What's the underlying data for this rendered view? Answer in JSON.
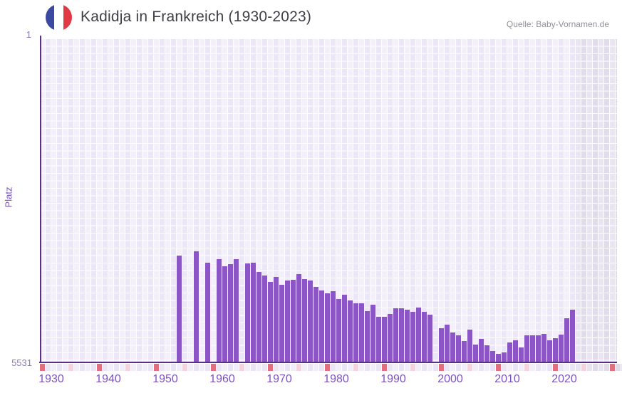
{
  "header": {
    "title": "Kadidja in Frankreich (1930-2023)",
    "flag_icon": "france-flag-icon",
    "source": "Quelle: Baby-Vornamen.de"
  },
  "colors": {
    "bar": "#8C55C6",
    "axis_line": "#5B2E8E",
    "axis_label_text": "#8E7BBC",
    "year_label_text": "#7C52C0",
    "y_title_text": "#7A4FC5",
    "title_text": "#3E3E47",
    "source_text": "#90909A",
    "grid_light": "#F4F0FA",
    "grid_dark": "#ECE7F6",
    "future_grid_light": "#E9E5F1",
    "future_grid_dark": "#E0DCEA",
    "decade_tick": "#E0707E",
    "half_decade_tick": "#F3D3DE",
    "strip_light": "#F2EEF9",
    "strip_dark": "#EAE5F4",
    "future_strip_light": "#E7E3EF",
    "future_strip_dark": "#DFDBE9",
    "flag_blue": "#3B4AA0",
    "flag_white": "#FFFFFF",
    "flag_red": "#E23843"
  },
  "chart_data": {
    "type": "bar",
    "title": "Kadidja in Frankreich (1930-2023)",
    "xlabel": "",
    "ylabel": "Platz",
    "y_axis": {
      "top_label": "1",
      "bottom_label": "5531",
      "min": 1,
      "max": 5531,
      "inverted": true,
      "note": "rank 1 at top, rank 5531 at bottom; taller bar = better rank"
    },
    "x_axis": {
      "tick_labels": [
        "1930",
        "1940",
        "1950",
        "1960",
        "1970",
        "1980",
        "1990",
        "2000",
        "2010",
        "2020"
      ],
      "first_year": 1930,
      "last_data_year": 2023,
      "major_tick_every": 10,
      "minor_tick_every": 5
    },
    "grid": "checkerboard",
    "legend": "off",
    "years_without_ranking": "1930-1953, 1955, 1956, 1958, 1960, 1965, 1999",
    "bars": [
      {
        "year": 1954,
        "rank": 3700
      },
      {
        "year": 1957,
        "rank": 3630
      },
      {
        "year": 1959,
        "rank": 3820
      },
      {
        "year": 1961,
        "rank": 3760
      },
      {
        "year": 1962,
        "rank": 3890
      },
      {
        "year": 1963,
        "rank": 3850
      },
      {
        "year": 1964,
        "rank": 3770
      },
      {
        "year": 1966,
        "rank": 3840
      },
      {
        "year": 1967,
        "rank": 3820
      },
      {
        "year": 1968,
        "rank": 3980
      },
      {
        "year": 1969,
        "rank": 4050
      },
      {
        "year": 1970,
        "rank": 4150
      },
      {
        "year": 1971,
        "rank": 4070
      },
      {
        "year": 1972,
        "rank": 4200
      },
      {
        "year": 1973,
        "rank": 4130
      },
      {
        "year": 1974,
        "rank": 4120
      },
      {
        "year": 1975,
        "rank": 4020
      },
      {
        "year": 1976,
        "rank": 4110
      },
      {
        "year": 1977,
        "rank": 4130
      },
      {
        "year": 1978,
        "rank": 4240
      },
      {
        "year": 1979,
        "rank": 4300
      },
      {
        "year": 1980,
        "rank": 4350
      },
      {
        "year": 1981,
        "rank": 4310
      },
      {
        "year": 1982,
        "rank": 4450
      },
      {
        "year": 1983,
        "rank": 4370
      },
      {
        "year": 1984,
        "rank": 4470
      },
      {
        "year": 1985,
        "rank": 4520
      },
      {
        "year": 1986,
        "rank": 4520
      },
      {
        "year": 1987,
        "rank": 4650
      },
      {
        "year": 1988,
        "rank": 4540
      },
      {
        "year": 1989,
        "rank": 4750
      },
      {
        "year": 1990,
        "rank": 4750
      },
      {
        "year": 1991,
        "rank": 4700
      },
      {
        "year": 1992,
        "rank": 4600
      },
      {
        "year": 1993,
        "rank": 4610
      },
      {
        "year": 1994,
        "rank": 4630
      },
      {
        "year": 1995,
        "rank": 4670
      },
      {
        "year": 1996,
        "rank": 4590
      },
      {
        "year": 1997,
        "rank": 4660
      },
      {
        "year": 1998,
        "rank": 4720
      },
      {
        "year": 2000,
        "rank": 4940
      },
      {
        "year": 2001,
        "rank": 4880
      },
      {
        "year": 2002,
        "rank": 5020
      },
      {
        "year": 2003,
        "rank": 5070
      },
      {
        "year": 2004,
        "rank": 5160
      },
      {
        "year": 2005,
        "rank": 4970
      },
      {
        "year": 2006,
        "rank": 5220
      },
      {
        "year": 2007,
        "rank": 5130
      },
      {
        "year": 2008,
        "rank": 5240
      },
      {
        "year": 2009,
        "rank": 5330
      },
      {
        "year": 2010,
        "rank": 5390
      },
      {
        "year": 2011,
        "rank": 5360
      },
      {
        "year": 2012,
        "rank": 5190
      },
      {
        "year": 2013,
        "rank": 5150
      },
      {
        "year": 2014,
        "rank": 5270
      },
      {
        "year": 2015,
        "rank": 5070
      },
      {
        "year": 2016,
        "rank": 5070
      },
      {
        "year": 2017,
        "rank": 5070
      },
      {
        "year": 2018,
        "rank": 5040
      },
      {
        "year": 2019,
        "rank": 5150
      },
      {
        "year": 2020,
        "rank": 5120
      },
      {
        "year": 2021,
        "rank": 5050
      },
      {
        "year": 2022,
        "rank": 4780
      },
      {
        "year": 2023,
        "rank": 4630
      }
    ]
  }
}
